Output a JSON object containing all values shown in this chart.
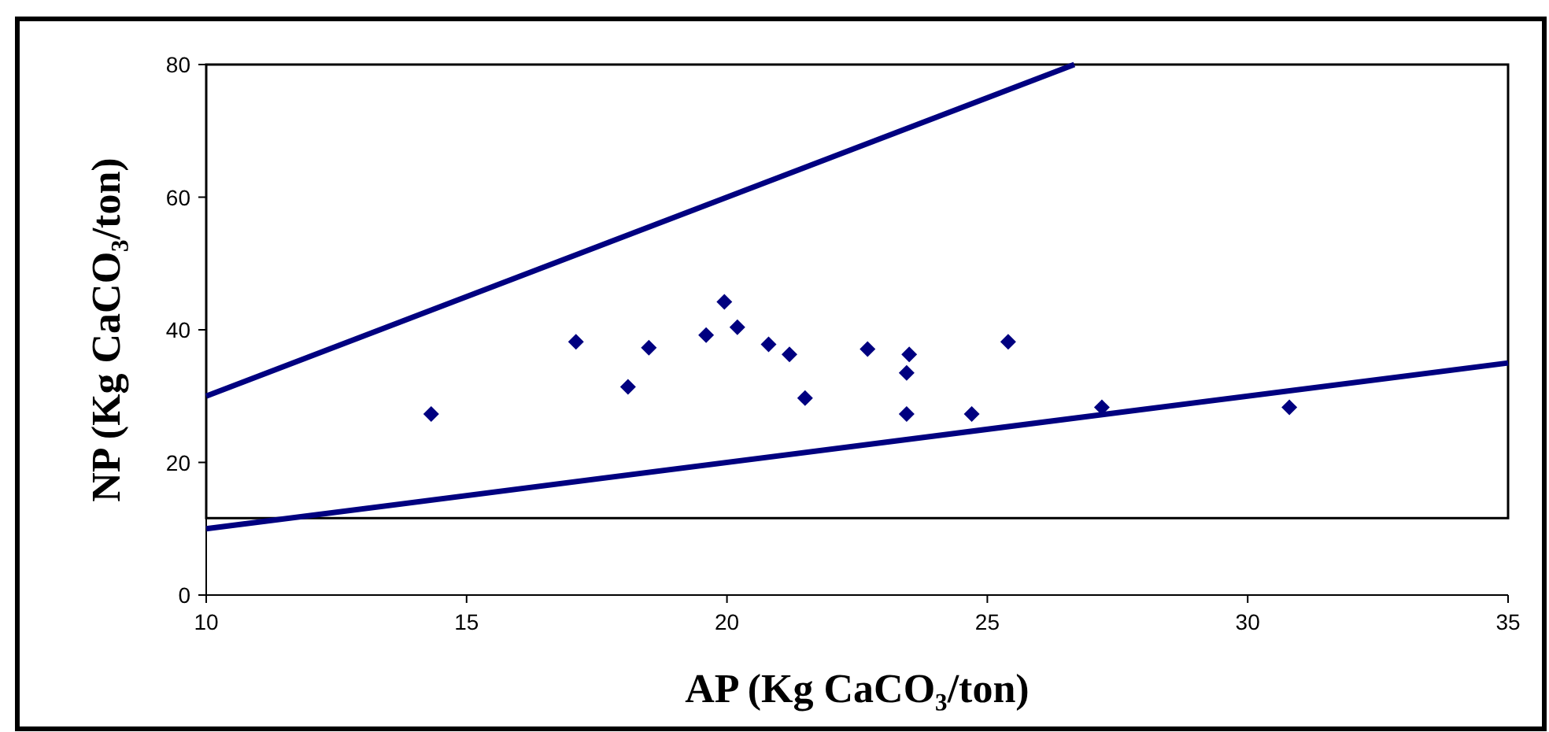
{
  "chart_data": {
    "type": "scatter",
    "xlabel": "AP (Kg CaCO₃/ton)",
    "ylabel": "NP (Kg CaCO₃/ton)",
    "xlim": [
      10,
      35
    ],
    "ylim": [
      0,
      80
    ],
    "xticks": [
      10,
      15,
      20,
      25,
      30,
      35
    ],
    "yticks": [
      0,
      20,
      40,
      60,
      80
    ],
    "grid": false,
    "marker": "diamond",
    "series": [
      {
        "color": "#000080",
        "x": [
          14.32,
          17.1,
          18.1,
          18.5,
          19.6,
          19.95,
          20.2,
          20.8,
          21.2,
          21.5,
          22.7,
          23.5,
          23.45,
          23.45,
          24.7,
          25.4,
          27.2,
          30.8
        ],
        "values": [
          27.3,
          38.2,
          31.4,
          37.3,
          39.2,
          44.2,
          40.4,
          37.8,
          36.3,
          29.7,
          37.1,
          36.3,
          33.5,
          27.3,
          27.3,
          38.2,
          28.3,
          28.3
        ]
      },
      {
        "type": "line",
        "color": "#000080",
        "line_style": "solid",
        "marker": "none",
        "x": [
          10,
          26.67
        ],
        "values": [
          30,
          80
        ]
      },
      {
        "type": "line",
        "color": "#000080",
        "line_style": "solid",
        "marker": "none",
        "x": [
          10,
          35
        ],
        "values": [
          10,
          35
        ]
      }
    ]
  }
}
